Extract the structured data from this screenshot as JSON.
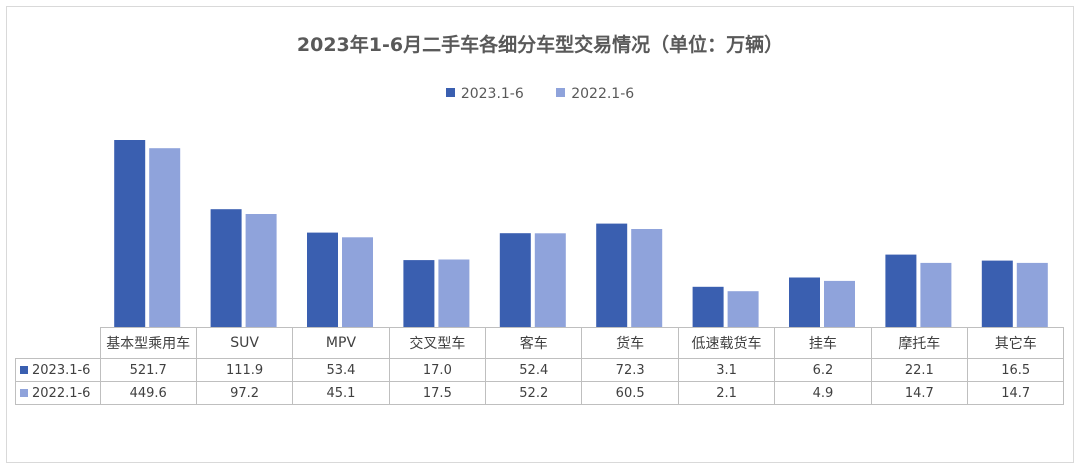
{
  "chart_data": {
    "type": "bar",
    "title": "2023年1-6月二手车各细分车型交易情况（单位：万辆）",
    "categories": [
      "基本型乘用车",
      "SUV",
      "MPV",
      "交叉型车",
      "客车",
      "货车",
      "低速载货车",
      "挂车",
      "摩托车",
      "其它车"
    ],
    "series": [
      {
        "name": "2023.1-6",
        "color": "#3a5fb0",
        "values": [
          521.7,
          111.9,
          53.4,
          17.0,
          52.4,
          72.3,
          3.1,
          6.2,
          22.1,
          16.5
        ],
        "labels": [
          "521.7",
          "111.9",
          "53.4",
          "17.0",
          "52.4",
          "72.3",
          "3.1",
          "6.2",
          "22.1",
          "16.5"
        ]
      },
      {
        "name": "2022.1-6",
        "color": "#8fa3db",
        "values": [
          449.6,
          97.2,
          45.1,
          17.5,
          52.2,
          60.5,
          2.1,
          4.9,
          14.7,
          14.7
        ],
        "labels": [
          "449.6",
          "97.2",
          "45.1",
          "17.5",
          "52.2",
          "60.5",
          "2.1",
          "4.9",
          "14.7",
          "14.7"
        ]
      }
    ],
    "legend_position": "top",
    "grid": false,
    "data_table": true
  }
}
